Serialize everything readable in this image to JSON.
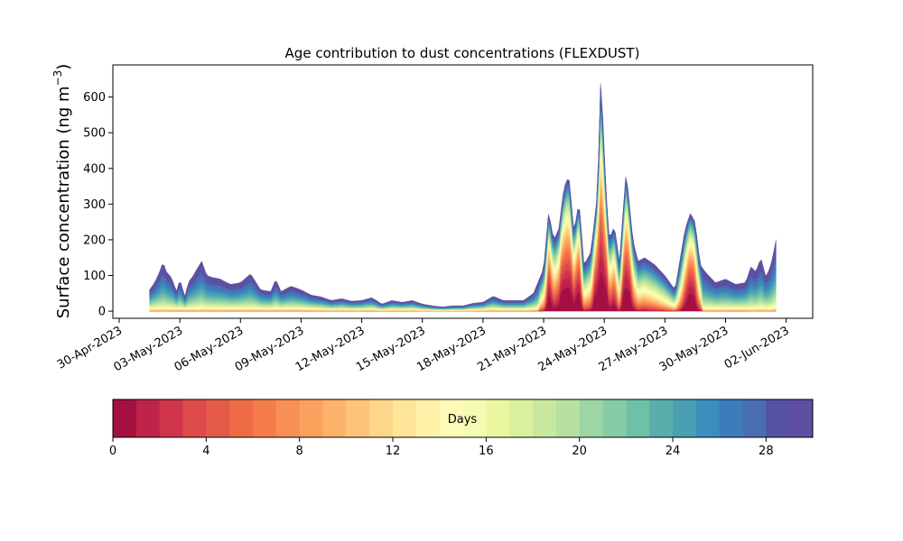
{
  "chart_data": {
    "type": "area",
    "title": "Age contribution to dust concentrations (FLEXDUST)",
    "ylabel_main": "Surface concentration (ng m",
    "ylabel_sup": "−3",
    "ylabel_close": ")",
    "ylim": [
      -20,
      690
    ],
    "yticks": [
      0,
      100,
      200,
      300,
      400,
      500,
      600
    ],
    "x_range": [
      "2023-04-30",
      "2023-06-03"
    ],
    "x_start": "2023-05-01T12:00",
    "x_end": "2023-06-01T12:00",
    "xticks": [
      {
        "date": "2023-04-30",
        "label": "30-Apr-2023"
      },
      {
        "date": "2023-05-03",
        "label": "03-May-2023"
      },
      {
        "date": "2023-05-06",
        "label": "06-May-2023"
      },
      {
        "date": "2023-05-09",
        "label": "09-May-2023"
      },
      {
        "date": "2023-05-12",
        "label": "12-May-2023"
      },
      {
        "date": "2023-05-15",
        "label": "15-May-2023"
      },
      {
        "date": "2023-05-18",
        "label": "18-May-2023"
      },
      {
        "date": "2023-05-21",
        "label": "21-May-2023"
      },
      {
        "date": "2023-05-24",
        "label": "24-May-2023"
      },
      {
        "date": "2023-05-27",
        "label": "27-May-2023"
      },
      {
        "date": "2023-05-30",
        "label": "30-May-2023"
      },
      {
        "date": "2023-06-02",
        "label": "02-Jun-2023"
      }
    ],
    "total_series": [
      [
        "2023-05-01T12:00",
        60
      ],
      [
        "2023-05-01T18:00",
        80
      ],
      [
        "2023-05-02T00:00",
        110
      ],
      [
        "2023-05-02T04:00",
        138
      ],
      [
        "2023-05-02T08:00",
        110
      ],
      [
        "2023-05-02T14:00",
        95
      ],
      [
        "2023-05-02T20:00",
        55
      ],
      [
        "2023-05-03T00:00",
        90
      ],
      [
        "2023-05-03T06:00",
        40
      ],
      [
        "2023-05-03T10:00",
        80
      ],
      [
        "2023-05-03T16:00",
        100
      ],
      [
        "2023-05-03T22:00",
        125
      ],
      [
        "2023-05-04T02:00",
        140
      ],
      [
        "2023-05-04T08:00",
        100
      ],
      [
        "2023-05-04T14:00",
        95
      ],
      [
        "2023-05-05T00:00",
        90
      ],
      [
        "2023-05-05T12:00",
        75
      ],
      [
        "2023-05-06T00:00",
        80
      ],
      [
        "2023-05-06T12:00",
        105
      ],
      [
        "2023-05-07T00:00",
        60
      ],
      [
        "2023-05-07T12:00",
        55
      ],
      [
        "2023-05-07T18:00",
        90
      ],
      [
        "2023-05-08T00:00",
        55
      ],
      [
        "2023-05-08T12:00",
        70
      ],
      [
        "2023-05-09T00:00",
        60
      ],
      [
        "2023-05-09T12:00",
        45
      ],
      [
        "2023-05-10T00:00",
        40
      ],
      [
        "2023-05-10T12:00",
        30
      ],
      [
        "2023-05-11T00:00",
        35
      ],
      [
        "2023-05-11T12:00",
        28
      ],
      [
        "2023-05-12T00:00",
        30
      ],
      [
        "2023-05-12T12:00",
        38
      ],
      [
        "2023-05-13T00:00",
        20
      ],
      [
        "2023-05-13T12:00",
        30
      ],
      [
        "2023-05-14T00:00",
        25
      ],
      [
        "2023-05-14T12:00",
        30
      ],
      [
        "2023-05-15T00:00",
        20
      ],
      [
        "2023-05-15T12:00",
        15
      ],
      [
        "2023-05-16T00:00",
        12
      ],
      [
        "2023-05-16T12:00",
        15
      ],
      [
        "2023-05-17T00:00",
        15
      ],
      [
        "2023-05-17T12:00",
        22
      ],
      [
        "2023-05-18T00:00",
        25
      ],
      [
        "2023-05-18T12:00",
        42
      ],
      [
        "2023-05-19T00:00",
        30
      ],
      [
        "2023-05-19T12:00",
        30
      ],
      [
        "2023-05-20T00:00",
        30
      ],
      [
        "2023-05-20T12:00",
        50
      ],
      [
        "2023-05-21T00:00",
        120
      ],
      [
        "2023-05-21T06:00",
        280
      ],
      [
        "2023-05-21T12:00",
        200
      ],
      [
        "2023-05-21T18:00",
        230
      ],
      [
        "2023-05-22T00:00",
        345
      ],
      [
        "2023-05-22T06:00",
        380
      ],
      [
        "2023-05-22T12:00",
        220
      ],
      [
        "2023-05-22T18:00",
        310
      ],
      [
        "2023-05-23T00:00",
        130
      ],
      [
        "2023-05-23T08:00",
        165
      ],
      [
        "2023-05-23T16:00",
        330
      ],
      [
        "2023-05-23T20:00",
        665
      ],
      [
        "2023-05-24T02:00",
        340
      ],
      [
        "2023-05-24T06:00",
        200
      ],
      [
        "2023-05-24T12:00",
        240
      ],
      [
        "2023-05-24T18:00",
        140
      ],
      [
        "2023-05-25T02:00",
        395
      ],
      [
        "2023-05-25T10:00",
        200
      ],
      [
        "2023-05-25T16:00",
        140
      ],
      [
        "2023-05-26T00:00",
        150
      ],
      [
        "2023-05-26T12:00",
        130
      ],
      [
        "2023-05-27T00:00",
        100
      ],
      [
        "2023-05-27T12:00",
        60
      ],
      [
        "2023-05-28T00:00",
        230
      ],
      [
        "2023-05-28T06:00",
        275
      ],
      [
        "2023-05-28T12:00",
        250
      ],
      [
        "2023-05-28T18:00",
        130
      ],
      [
        "2023-05-29T00:00",
        110
      ],
      [
        "2023-05-29T12:00",
        80
      ],
      [
        "2023-05-30T00:00",
        90
      ],
      [
        "2023-05-30T12:00",
        75
      ],
      [
        "2023-05-31T00:00",
        80
      ],
      [
        "2023-05-31T06:00",
        125
      ],
      [
        "2023-05-31T12:00",
        110
      ],
      [
        "2023-05-31T18:00",
        150
      ],
      [
        "2023-06-01T00:00",
        95
      ],
      [
        "2023-06-01T06:00",
        130
      ],
      [
        "2023-06-01T12:00",
        200
      ]
    ],
    "age_bins_days": 30,
    "colorbar": {
      "label": "Days",
      "range": [
        0,
        30
      ],
      "ticks": [
        0,
        4,
        8,
        12,
        16,
        20,
        24,
        28
      ],
      "colors": [
        "#a50f42",
        "#bd2448",
        "#d0344b",
        "#dd4a4b",
        "#e55b4a",
        "#ef6b46",
        "#f57d4a",
        "#f88f55",
        "#fba15e",
        "#fdb36a",
        "#fec47a",
        "#fed68a",
        "#fee597",
        "#fff1a7",
        "#fefbb8",
        "#f5fbb2",
        "#eaf79f",
        "#dbf09c",
        "#c8e8a0",
        "#b6e1a1",
        "#9ed5a5",
        "#85cba6",
        "#6fc1a6",
        "#5aaea9",
        "#4a9fb3",
        "#3a8fbd",
        "#3d7cba",
        "#4a6db2",
        "#5752a3",
        "#5e4fa2"
      ]
    }
  }
}
